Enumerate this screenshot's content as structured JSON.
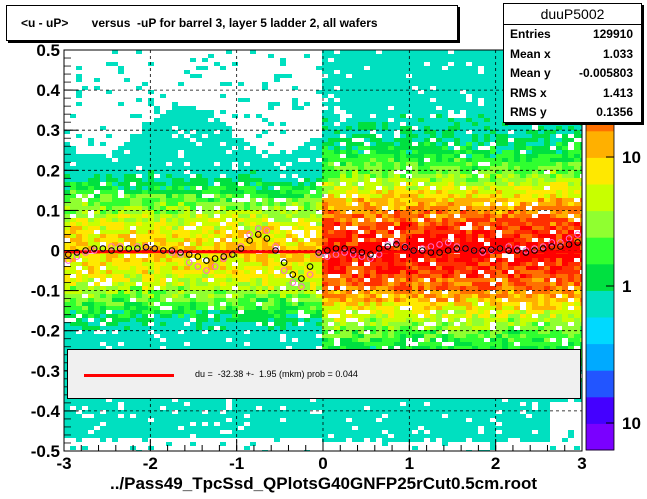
{
  "title": "<u - uP>       versus  -uP for barrel 3, layer 5 ladder 2, all wafers",
  "footer": "../Pass49_TpcSsd_QPlotsG40GNFP25rCut0.5cm.root",
  "stats": {
    "name": "duuP5002",
    "rows": [
      {
        "label": "Entries",
        "value": "129910"
      },
      {
        "label": "Mean x",
        "value": "1.033"
      },
      {
        "label": "Mean y",
        "value": "-0.005803"
      },
      {
        "label": "RMS x",
        "value": "1.413"
      },
      {
        "label": "RMS y",
        "value": "0.1356"
      }
    ]
  },
  "legend": {
    "text": "du =  -32.38 +-  1.95 (mkm) prob = 0.044",
    "line_color": "#ff0000"
  },
  "chart_data": {
    "type": "heatmap",
    "xlim": [
      -3,
      3
    ],
    "ylim": [
      -0.5,
      0.5
    ],
    "x_ticks": [
      "-3",
      "-2",
      "-1",
      "0",
      "1",
      "2",
      "3"
    ],
    "y_ticks": [
      "-0.5",
      "-0.4",
      "-0.3",
      "-0.2",
      "-0.1",
      "0",
      "0.1",
      "0.2",
      "0.3",
      "0.4",
      "0.5"
    ],
    "z_scale": "log",
    "z_ticks": [
      "10",
      "1",
      "10"
    ],
    "grid": true,
    "colors": {
      "fit_line": "#ff0000",
      "profile_black": "#000000",
      "profile_pink": "#ff66cc",
      "palette": [
        "#7a00ff",
        "#4400ff",
        "#2255ff",
        "#00aaff",
        "#00d9ff",
        "#00e0c0",
        "#00e040",
        "#30ff30",
        "#90ff30",
        "#c8ff00",
        "#ffe800",
        "#ffb000",
        "#ff7000",
        "#ff3000",
        "#ff0000"
      ]
    },
    "fit": {
      "x_start": -3.0,
      "x_end": 3.0,
      "y": -0.0032
    },
    "profile_black": {
      "x": [
        -2.95,
        -2.85,
        -2.75,
        -2.65,
        -2.55,
        -2.45,
        -2.35,
        -2.25,
        -2.15,
        -2.05,
        -1.95,
        -1.85,
        -1.75,
        -1.65,
        -1.55,
        -1.45,
        -1.35,
        -1.25,
        -1.15,
        -1.05,
        -0.95,
        -0.85,
        -0.75,
        -0.65,
        -0.55,
        -0.45,
        -0.35,
        -0.25,
        -0.15,
        -0.05,
        0.05,
        0.15,
        0.25,
        0.35,
        0.45,
        0.55,
        0.65,
        0.75,
        0.85,
        0.95,
        1.05,
        1.15,
        1.25,
        1.35,
        1.45,
        1.55,
        1.65,
        1.75,
        1.85,
        1.95,
        2.05,
        2.15,
        2.25,
        2.35,
        2.45,
        2.55,
        2.65,
        2.75,
        2.85,
        2.95
      ],
      "y": [
        -0.01,
        -0.005,
        0.0,
        0.005,
        0.005,
        0.0,
        0.005,
        0.005,
        0.005,
        0.008,
        0.005,
        0.0,
        0.0,
        -0.005,
        -0.01,
        -0.015,
        -0.025,
        -0.02,
        -0.015,
        -0.01,
        0.005,
        0.025,
        0.04,
        0.03,
        0.0,
        -0.03,
        -0.06,
        -0.07,
        -0.04,
        -0.005,
        0.0,
        0.005,
        0.005,
        0.0,
        -0.005,
        -0.01,
        0.005,
        0.01,
        0.015,
        0.008,
        0.0,
        0.0,
        -0.005,
        -0.005,
        0.0,
        0.005,
        0.005,
        0.0,
        0.0,
        0.002,
        0.005,
        0.0,
        0.0,
        -0.005,
        0.0,
        0.005,
        0.01,
        0.01,
        0.015,
        0.02
      ]
    },
    "profile_pink": {
      "x": [
        -2.95,
        -2.85,
        -2.75,
        -2.65,
        -2.55,
        -2.45,
        -2.35,
        -2.25,
        -2.15,
        -2.05,
        -1.95,
        -1.85,
        -1.75,
        -1.65,
        -1.55,
        -1.45,
        -1.35,
        -1.25,
        -1.15,
        -1.05,
        -0.95,
        -0.85,
        -0.75,
        -0.65,
        -0.55,
        -0.45,
        -0.35,
        -0.25,
        -0.15,
        -0.05,
        0.05,
        0.15,
        0.25,
        0.35,
        0.45,
        0.55,
        0.65,
        0.75,
        0.85,
        0.95,
        1.05,
        1.15,
        1.25,
        1.35,
        1.45,
        1.55,
        1.65,
        1.75,
        1.85,
        1.95,
        2.05,
        2.15,
        2.25,
        2.35,
        2.45,
        2.55,
        2.65,
        2.75,
        2.85,
        2.95
      ],
      "y": [
        -0.025,
        -0.015,
        -0.005,
        0.0,
        0.005,
        0.01,
        0.01,
        0.005,
        0.01,
        0.01,
        0.005,
        0.0,
        -0.005,
        -0.01,
        -0.03,
        -0.04,
        -0.05,
        -0.04,
        -0.02,
        -0.01,
        0.01,
        0.04,
        0.055,
        0.05,
        0.01,
        -0.05,
        -0.08,
        -0.09,
        -0.06,
        -0.01,
        -0.015,
        -0.01,
        -0.005,
        -0.01,
        -0.015,
        -0.02,
        -0.01,
        0.015,
        0.02,
        0.01,
        0.0,
        0.005,
        0.01,
        0.015,
        0.02,
        0.01,
        0.005,
        0.0,
        -0.005,
        0.0,
        0.005,
        0.01,
        0.005,
        0.0,
        0.005,
        0.01,
        0.02,
        0.02,
        0.03,
        0.04
      ]
    }
  }
}
